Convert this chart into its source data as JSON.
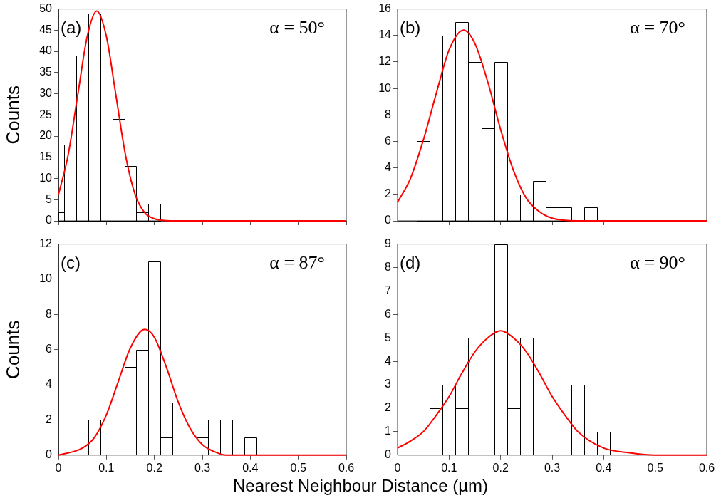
{
  "chart_data": [
    {
      "type": "histogram",
      "ylabel": "Counts",
      "annotations": [
        "(a)",
        "α = 50°"
      ],
      "xlim": [
        0,
        0.6
      ],
      "xticks": [
        0,
        0.1,
        0.2,
        0.3,
        0.4,
        0.5,
        0.6
      ],
      "ylim": [
        0,
        50
      ],
      "yticks": [
        0,
        5,
        10,
        15,
        20,
        25,
        30,
        35,
        40,
        45,
        50
      ],
      "tick_labels": "y",
      "bins": [
        0,
        0.0125,
        0.0375,
        0.0625,
        0.0875,
        0.1125,
        0.1375,
        0.1625,
        0.1875,
        0.2125
      ],
      "series": [
        {
          "type": "histogram",
          "color": "#000000",
          "values": [
            2,
            18,
            39,
            49,
            42,
            24,
            13,
            2,
            4
          ]
        },
        {
          "type": "line",
          "color": "#ff0000",
          "x": [
            0,
            0.02,
            0.04,
            0.06,
            0.08,
            0.1,
            0.12,
            0.14,
            0.16,
            0.18,
            0.2,
            0.22,
            0.25,
            0.6
          ],
          "values": [
            6.2,
            15.4,
            29.5,
            43.5,
            49.5,
            43.5,
            29.5,
            15.4,
            6.2,
            1.9,
            0.5,
            0.1,
            0,
            0
          ]
        }
      ]
    },
    {
      "type": "histogram",
      "annotations": [
        "(b)",
        "α = 70°"
      ],
      "xlim": [
        0,
        0.6
      ],
      "xticks": [
        0,
        0.1,
        0.2,
        0.3,
        0.4,
        0.5,
        0.6
      ],
      "ylim": [
        0,
        16
      ],
      "yticks": [
        0,
        2,
        4,
        6,
        8,
        10,
        12,
        14,
        16
      ],
      "tick_labels": "y",
      "bins": [
        0.0375,
        0.0625,
        0.0875,
        0.1125,
        0.1375,
        0.1625,
        0.1875,
        0.2125,
        0.2375,
        0.2625,
        0.2875,
        0.3125,
        0.3375,
        0.3625,
        0.3875
      ],
      "series": [
        {
          "type": "histogram",
          "color": "#000000",
          "values": [
            6,
            11,
            14,
            15,
            12,
            7,
            12,
            2,
            2,
            3,
            1,
            1,
            0,
            1
          ]
        },
        {
          "type": "line",
          "color": "#ff0000",
          "x": [
            0,
            0.025,
            0.05,
            0.075,
            0.1,
            0.128,
            0.15,
            0.175,
            0.2,
            0.225,
            0.25,
            0.275,
            0.3,
            0.35,
            0.4,
            0.6
          ],
          "values": [
            1.4,
            3.2,
            6.1,
            9.6,
            12.9,
            14.4,
            13.4,
            10.5,
            6.9,
            3.8,
            1.7,
            0.7,
            0.2,
            0,
            0,
            0
          ]
        }
      ]
    },
    {
      "type": "histogram",
      "ylabel": "Counts",
      "xlabel": "Nearest Neighbour Distance (µm)",
      "annotations": [
        "(c)",
        "α = 87°"
      ],
      "xlim": [
        0,
        0.6
      ],
      "xticks": [
        0,
        0.1,
        0.2,
        0.3,
        0.4,
        0.5,
        0.6
      ],
      "ylim": [
        0,
        12
      ],
      "yticks": [
        0,
        2,
        4,
        6,
        8,
        10,
        12
      ],
      "bins": [
        0.0625,
        0.0875,
        0.1125,
        0.1375,
        0.1625,
        0.1875,
        0.2125,
        0.2375,
        0.2625,
        0.2875,
        0.3125,
        0.3375,
        0.3625,
        0.3875,
        0.4125
      ],
      "series": [
        {
          "type": "histogram",
          "color": "#000000",
          "values": [
            2,
            2,
            4,
            5,
            6,
            11,
            1,
            3,
            2,
            1,
            2,
            2,
            0,
            1
          ]
        },
        {
          "type": "line",
          "color": "#ff0000",
          "x": [
            0,
            0.05,
            0.075,
            0.1,
            0.125,
            0.15,
            0.18,
            0.2,
            0.225,
            0.25,
            0.275,
            0.3,
            0.325,
            0.35,
            0.4,
            0.6
          ],
          "values": [
            0,
            0.4,
            1,
            2.3,
            4.2,
            6.1,
            7.15,
            6.7,
            5,
            3,
            1.5,
            0.6,
            0.2,
            0,
            0,
            0
          ]
        }
      ]
    },
    {
      "type": "histogram",
      "annotations": [
        "(d)",
        "α = 90°"
      ],
      "xlim": [
        0,
        0.6
      ],
      "xticks": [
        0,
        0.1,
        0.2,
        0.3,
        0.4,
        0.5,
        0.6
      ],
      "ylim": [
        0,
        9
      ],
      "yticks": [
        0,
        1,
        2,
        3,
        4,
        5,
        6,
        7,
        8,
        9
      ],
      "bins": [
        0.0625,
        0.0875,
        0.1125,
        0.1375,
        0.1625,
        0.1875,
        0.2125,
        0.2375,
        0.2625,
        0.2875,
        0.3125,
        0.3375,
        0.3625,
        0.3875,
        0.4125
      ],
      "series": [
        {
          "type": "histogram",
          "color": "#000000",
          "values": [
            2,
            3,
            2,
            5,
            3,
            9,
            2,
            5,
            5,
            0,
            1,
            3,
            0,
            1
          ]
        },
        {
          "type": "line",
          "color": "#ff0000",
          "x": [
            0,
            0.025,
            0.05,
            0.075,
            0.1,
            0.125,
            0.15,
            0.175,
            0.2,
            0.225,
            0.25,
            0.275,
            0.3,
            0.325,
            0.35,
            0.4,
            0.45,
            0.5,
            0.6
          ],
          "values": [
            0.3,
            0.6,
            1,
            1.7,
            2.5,
            3.5,
            4.4,
            5,
            5.3,
            5,
            4.4,
            3.5,
            2.5,
            1.7,
            1,
            0.3,
            0.1,
            0,
            0
          ]
        }
      ]
    }
  ]
}
